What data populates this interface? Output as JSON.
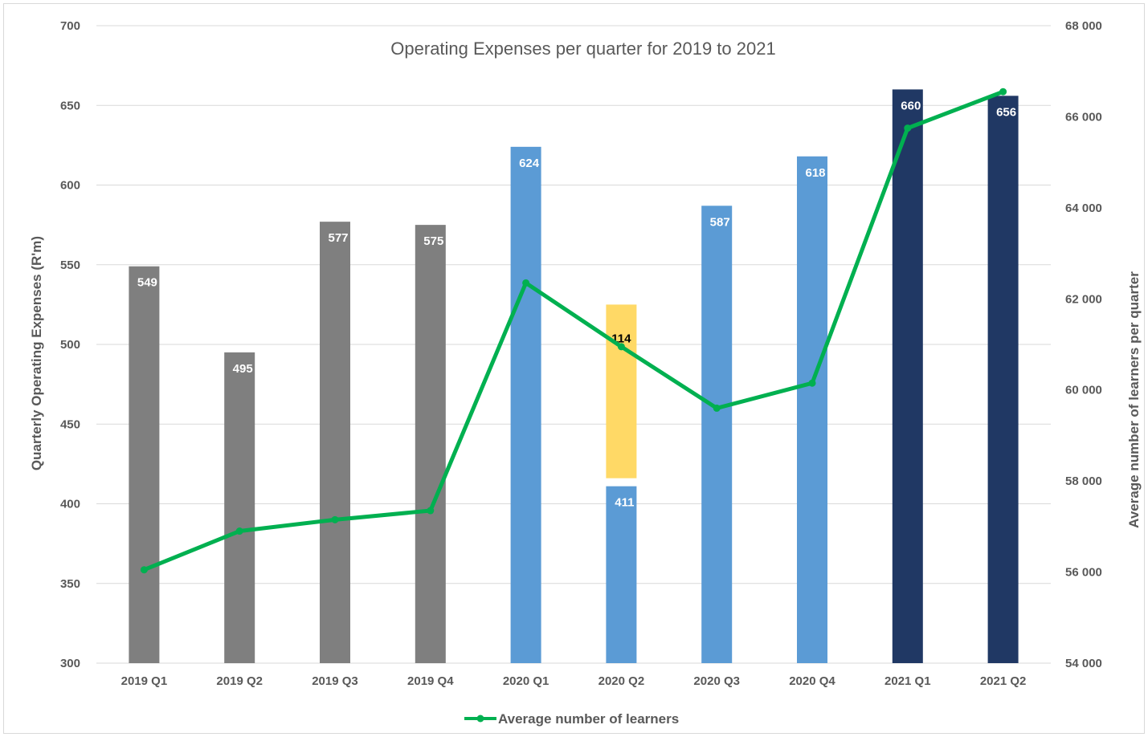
{
  "chart_data": {
    "type": "bar",
    "title": "Operating Expenses per quarter for 2019 to 2021",
    "ylabel": "Quarterly Operating Expenses  (R'm)",
    "y2label": "Average number of  learners per quarter",
    "xlabel": "",
    "ylim": [
      300,
      700
    ],
    "y2lim": [
      54000,
      68000
    ],
    "yticks": [
      "300",
      "350",
      "400",
      "450",
      "500",
      "550",
      "600",
      "650",
      "700"
    ],
    "y2ticks": [
      "54 000",
      "56 000",
      "58 000",
      "60 000",
      "62 000",
      "64 000",
      "66 000",
      "68 000"
    ],
    "yticks_values": [
      300,
      350,
      400,
      450,
      500,
      550,
      600,
      650,
      700
    ],
    "y2ticks_values": [
      54000,
      56000,
      58000,
      60000,
      62000,
      64000,
      66000,
      68000
    ],
    "categories": [
      "2019 Q1",
      "2019 Q2",
      "2019 Q3",
      "2019 Q4",
      "2020 Q1",
      "2020 Q2",
      "2020 Q3",
      "2020 Q4",
      "2021 Q1",
      "2021 Q2"
    ],
    "bars": [
      {
        "value": 549,
        "label": "549",
        "color": "#7f7f7f"
      },
      {
        "value": 495,
        "label": "495",
        "color": "#7f7f7f"
      },
      {
        "value": 577,
        "label": "577",
        "color": "#7f7f7f"
      },
      {
        "value": 575,
        "label": "575",
        "color": "#7f7f7f"
      },
      {
        "value": 624,
        "label": "624",
        "color": "#5b9bd5"
      },
      {
        "value": 411,
        "label": "411",
        "color": "#5b9bd5"
      },
      {
        "value": 587,
        "label": "587",
        "color": "#5b9bd5"
      },
      {
        "value": 618,
        "label": "618",
        "color": "#5b9bd5"
      },
      {
        "value": 660,
        "label": "660",
        "color": "#203864"
      },
      {
        "value": 656,
        "label": "656",
        "color": "#203864"
      }
    ],
    "stacked_segment": {
      "category": "2020 Q2",
      "value": 114,
      "base": 411,
      "label": "114",
      "color": "#ffd966"
    },
    "series": [
      {
        "name": "Average number of learners",
        "axis": "right",
        "color": "#00b050",
        "values": [
          56050,
          56900,
          57150,
          57350,
          62350,
          60950,
          59600,
          60150,
          65750,
          66550
        ]
      }
    ],
    "grid": true,
    "legend": "bottom-center"
  }
}
